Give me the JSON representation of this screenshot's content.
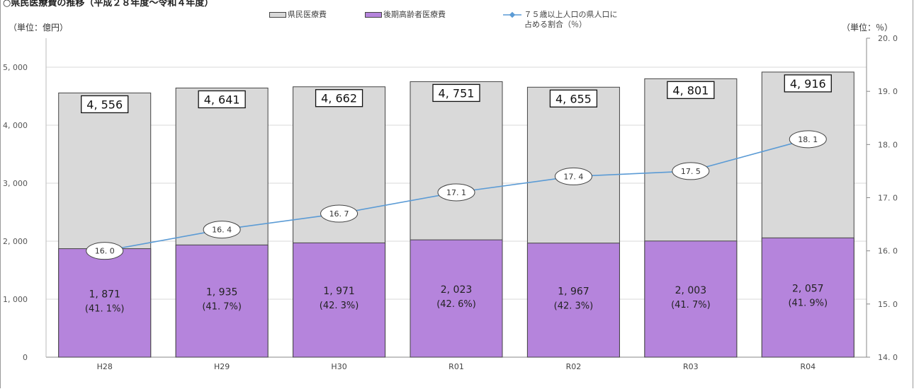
{
  "page": {
    "top_title": "○県民医療費の推移（平成２８年度～令和４年度）",
    "unit_left": "（単位：億円）",
    "unit_right": "（単位：％）"
  },
  "legend": {
    "total": "県民医療費",
    "elderly": "後期高齢者医療費",
    "ratio_line1": "７５歳以上人口の県人口に",
    "ratio_line2": "占める割合（％）"
  },
  "colors": {
    "total_fill": "#d9d9d9",
    "elderly_fill": "#b584dc",
    "line": "#5b9bd5",
    "grid": "#d9d9d9",
    "bar_border": "#444444"
  },
  "chart_data": {
    "type": "bar",
    "categories": [
      "H28",
      "H29",
      "H30",
      "R01",
      "R02",
      "R03",
      "R04"
    ],
    "series": [
      {
        "name": "県民医療費",
        "values": [
          4556,
          4641,
          4662,
          4751,
          4655,
          4801,
          4916
        ],
        "labels": [
          "4, 556",
          "4, 641",
          "4, 662",
          "4, 751",
          "4, 655",
          "4, 801",
          "4, 916"
        ]
      },
      {
        "name": "後期高齢者医療費",
        "values": [
          1871,
          1935,
          1971,
          2023,
          1967,
          2003,
          2057
        ],
        "labels": [
          "1, 871",
          "1, 935",
          "1, 971",
          "2, 023",
          "1, 967",
          "2, 003",
          "2, 057"
        ],
        "share_labels": [
          "(41. 1%)",
          "(41. 7%)",
          "(42. 3%)",
          "(42. 6%)",
          "(42. 3%)",
          "(41. 7%)",
          "(41. 9%)"
        ]
      },
      {
        "name": "７５歳以上人口の県人口に占める割合（％）",
        "axis": "right",
        "values": [
          16.0,
          16.4,
          16.7,
          17.1,
          17.4,
          17.5,
          18.1
        ],
        "labels": [
          "16. 0",
          "16. 4",
          "16. 7",
          "17. 1",
          "17. 4",
          "17. 5",
          "18. 1"
        ]
      }
    ],
    "ylim": [
      0,
      5000
    ],
    "yticks": [
      "0",
      "1, 000",
      "2, 000",
      "3, 000",
      "4, 000",
      "5, 000"
    ],
    "y2lim": [
      14.0,
      20.0
    ],
    "y2ticks": [
      "14. 0",
      "15. 0",
      "16. 0",
      "17. 0",
      "18. 0",
      "19. 0",
      "20. 0"
    ],
    "grid": true,
    "legend_position": "top"
  }
}
